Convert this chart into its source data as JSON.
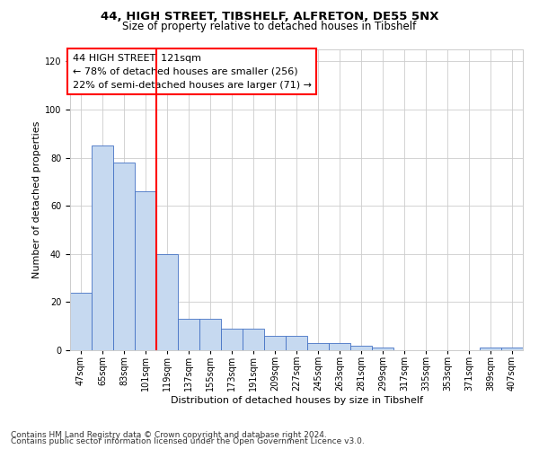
{
  "title_line1": "44, HIGH STREET, TIBSHELF, ALFRETON, DE55 5NX",
  "title_line2": "Size of property relative to detached houses in Tibshelf",
  "xlabel": "Distribution of detached houses by size in Tibshelf",
  "ylabel": "Number of detached properties",
  "categories": [
    "47sqm",
    "65sqm",
    "83sqm",
    "101sqm",
    "119sqm",
    "137sqm",
    "155sqm",
    "173sqm",
    "191sqm",
    "209sqm",
    "227sqm",
    "245sqm",
    "263sqm",
    "281sqm",
    "299sqm",
    "317sqm",
    "335sqm",
    "353sqm",
    "371sqm",
    "389sqm",
    "407sqm"
  ],
  "values": [
    24,
    85,
    78,
    66,
    40,
    13,
    13,
    9,
    9,
    6,
    6,
    3,
    3,
    2,
    1,
    0,
    0,
    0,
    0,
    1,
    1
  ],
  "bar_color": "#c6d9f0",
  "bar_edge_color": "#4472c4",
  "vline_pos": 3.5,
  "annotation_text": "44 HIGH STREET: 121sqm\n← 78% of detached houses are smaller (256)\n22% of semi-detached houses are larger (71) →",
  "annotation_box_color": "white",
  "annotation_box_edge_color": "red",
  "vline_color": "red",
  "ylim": [
    0,
    125
  ],
  "yticks": [
    0,
    20,
    40,
    60,
    80,
    100,
    120
  ],
  "grid_color": "#cccccc",
  "background_color": "white",
  "footer_line1": "Contains HM Land Registry data © Crown copyright and database right 2024.",
  "footer_line2": "Contains public sector information licensed under the Open Government Licence v3.0.",
  "title_fontsize": 9.5,
  "subtitle_fontsize": 8.5,
  "axis_label_fontsize": 8,
  "tick_fontsize": 7,
  "annotation_fontsize": 8,
  "footer_fontsize": 6.5
}
